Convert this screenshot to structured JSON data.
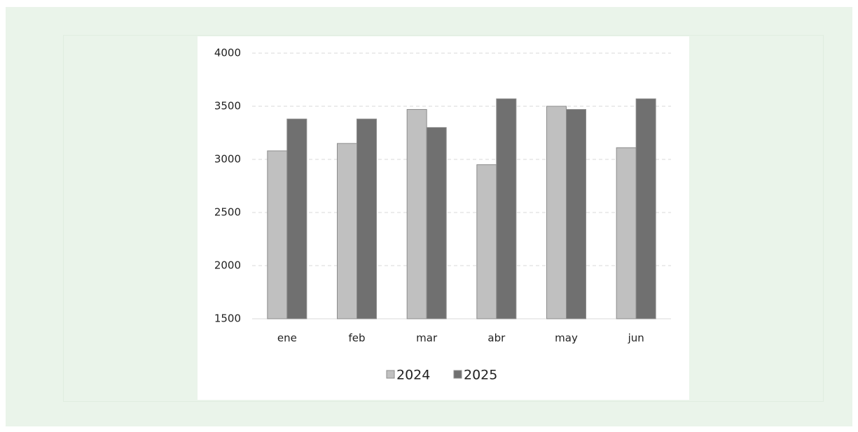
{
  "chart_data": {
    "type": "bar",
    "categories": [
      "ene",
      "feb",
      "mar",
      "abr",
      "may",
      "jun"
    ],
    "series": [
      {
        "name": "2024",
        "color": "#c0c0c0",
        "values": [
          3080,
          3150,
          3470,
          2950,
          3500,
          3110
        ]
      },
      {
        "name": "2025",
        "color": "#707070",
        "values": [
          3380,
          3380,
          3300,
          3570,
          3470,
          3570
        ]
      }
    ],
    "ylim": [
      1500,
      4000
    ],
    "yticks": [
      1500,
      2000,
      2500,
      3000,
      3500,
      4000
    ],
    "grid": true,
    "legend": "bottom"
  }
}
